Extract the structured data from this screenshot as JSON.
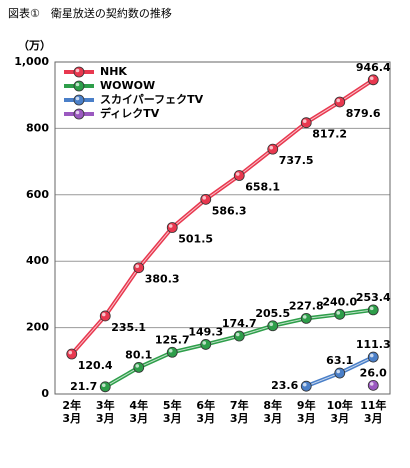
{
  "chart_data": {
    "type": "line",
    "title": "図表①　衛星放送の契約数の推移",
    "y_label": "（万）",
    "categories": [
      "2年\n3月",
      "3年\n3月",
      "4年\n3月",
      "5年\n3月",
      "6年\n3月",
      "7年\n3月",
      "8年\n3月",
      "9年\n3月",
      "10年\n3月",
      "11年\n3月"
    ],
    "series": [
      {
        "name": "NHK",
        "color": "#e8384f",
        "values": [
          120.4,
          235.1,
          380.3,
          501.5,
          586.3,
          658.1,
          737.5,
          817.2,
          879.6,
          946.4
        ]
      },
      {
        "name": "WOWOW",
        "color": "#2e9e4a",
        "values": [
          null,
          21.7,
          80.1,
          125.7,
          149.3,
          174.7,
          205.5,
          227.8,
          240.0,
          253.4
        ],
        "value_labels": [
          null,
          "21.7",
          "80.1",
          "125.7",
          "149.3",
          "174.7",
          "205.5",
          "227.8",
          "240.0",
          "253.4"
        ]
      },
      {
        "name": "スカイパーフェクTV",
        "color": "#4a7fc8",
        "values": [
          null,
          null,
          null,
          null,
          null,
          null,
          null,
          23.6,
          63.1,
          111.3
        ]
      },
      {
        "name": "ディレクTV",
        "color": "#9b59c0",
        "values": [
          null,
          null,
          null,
          null,
          null,
          null,
          null,
          null,
          null,
          26.0
        ],
        "value_labels": [
          null,
          null,
          null,
          null,
          null,
          null,
          null,
          null,
          null,
          "26.0"
        ]
      }
    ],
    "ylim": [
      0,
      1000
    ],
    "yticks": [
      0,
      200,
      400,
      600,
      800,
      {
        "value": 1000,
        "label": "1,000"
      }
    ],
    "grid": true,
    "legend": "upper left"
  }
}
